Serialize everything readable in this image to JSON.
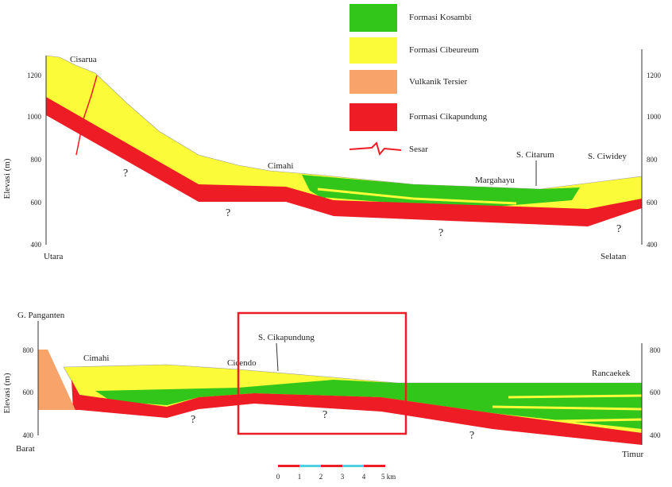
{
  "legend": [
    {
      "label": "Formasi Kosambi"
    },
    {
      "label": "Formasi Cibeureum"
    },
    {
      "label": "Vulkanik Tersier"
    },
    {
      "label": "Formasi Cikapundung"
    },
    {
      "label": "Sesar"
    }
  ],
  "section_1": {
    "y_axis_label": "Elevasi (m)",
    "left_ticks": [
      "1200",
      "1000",
      "800",
      "600",
      "400"
    ],
    "right_ticks": [
      "1200",
      "1000",
      "800",
      "600",
      "400"
    ],
    "places": [
      "Cisarua",
      "Cimahi",
      "Margahayu",
      "S. Citarum",
      "S. Ciwidey"
    ],
    "ends": [
      "Utara",
      "Selatan"
    ],
    "unknowns": [
      "?",
      "?",
      "?",
      "?"
    ]
  },
  "section_2": {
    "y_axis_label": "Elevasi (m)",
    "left_ticks": [
      "800",
      "600",
      "400"
    ],
    "right_ticks": [
      "800",
      "600",
      "400"
    ],
    "places": [
      "G. Panganten",
      "Cimahi",
      "Cicendo",
      "S. Cikapundung",
      "Rancaekek"
    ],
    "ends": [
      "Barat",
      "Timur"
    ],
    "unknowns": [
      "?",
      "?",
      "?"
    ]
  },
  "scale_bar": [
    "0",
    "1",
    "2",
    "3",
    "4",
    "5 km"
  ]
}
